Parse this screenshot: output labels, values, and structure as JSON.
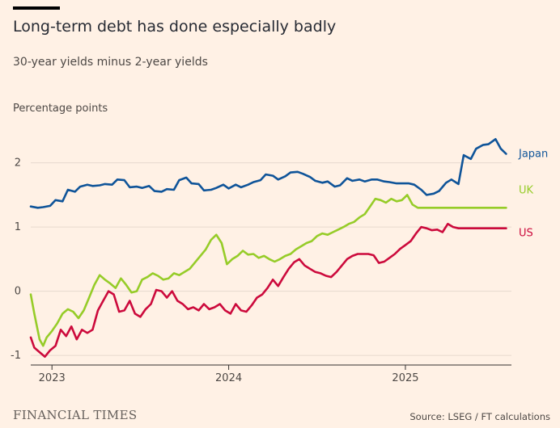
{
  "header": {
    "title": "Long-term debt has done especially badly",
    "subtitle": "30-year yields minus 2-year yields",
    "yaxis_label": "Percentage points"
  },
  "footer": {
    "brand": "FINANCIAL TIMES",
    "source": "Source: LSEG / FT calculations"
  },
  "colors": {
    "background": "#fff1e5",
    "japan": "#0f5499",
    "uk": "#96cc28",
    "us": "#cc0a3c",
    "grid": "#e6d9ce",
    "axis": "#33302e"
  },
  "chart_data": {
    "type": "line",
    "title": "Long-term debt has done especially badly",
    "subtitle": "30-year yields minus 2-year yields",
    "ylabel": "Percentage points",
    "ylim": [
      -1.15,
      2.65
    ],
    "yticks": [
      -1,
      0,
      1,
      2
    ],
    "xlim": [
      2022.88,
      2025.6
    ],
    "xticks": [
      {
        "label": "2023",
        "value": 2023.0
      },
      {
        "label": "2024",
        "value": 2024.0
      },
      {
        "label": "2025",
        "value": 2025.0
      }
    ],
    "grid": true,
    "legend": "inline labels at right end of each line",
    "series": [
      {
        "name": "Japan",
        "x": [
          2022.88,
          2022.92,
          2022.95,
          2022.99,
          2023.02,
          2023.06,
          2023.09,
          2023.13,
          2023.16,
          2023.2,
          2023.23,
          2023.27,
          2023.3,
          2023.34,
          2023.37,
          2023.41,
          2023.44,
          2023.48,
          2023.51,
          2023.55,
          2023.58,
          2023.62,
          2023.65,
          2023.69,
          2023.72,
          2023.76,
          2023.79,
          2023.83,
          2023.86,
          2023.9,
          2023.93,
          2023.97,
          2024.0,
          2024.04,
          2024.07,
          2024.11,
          2024.14,
          2024.18,
          2024.21,
          2024.25,
          2024.28,
          2024.32,
          2024.35,
          2024.39,
          2024.42,
          2024.46,
          2024.49,
          2024.53,
          2024.56,
          2024.6,
          2024.63,
          2024.67,
          2024.7,
          2024.74,
          2024.77,
          2024.81,
          2024.84,
          2024.88,
          2024.91,
          2024.95,
          2024.98,
          2025.02,
          2025.05,
          2025.09,
          2025.12,
          2025.16,
          2025.19,
          2025.23,
          2025.26,
          2025.3,
          2025.33,
          2025.37,
          2025.4,
          2025.44,
          2025.47,
          2025.51,
          2025.54,
          2025.57
        ],
        "values": [
          1.32,
          1.3,
          1.31,
          1.33,
          1.42,
          1.4,
          1.58,
          1.55,
          1.63,
          1.66,
          1.64,
          1.65,
          1.67,
          1.66,
          1.74,
          1.73,
          1.62,
          1.63,
          1.61,
          1.64,
          1.56,
          1.55,
          1.59,
          1.58,
          1.73,
          1.77,
          1.68,
          1.67,
          1.57,
          1.58,
          1.61,
          1.66,
          1.6,
          1.66,
          1.62,
          1.66,
          1.7,
          1.73,
          1.82,
          1.8,
          1.74,
          1.79,
          1.85,
          1.86,
          1.83,
          1.78,
          1.72,
          1.69,
          1.71,
          1.63,
          1.65,
          1.76,
          1.72,
          1.74,
          1.71,
          1.74,
          1.74,
          1.71,
          1.7,
          1.68,
          1.68,
          1.68,
          1.66,
          1.58,
          1.5,
          1.52,
          1.56,
          1.69,
          1.74,
          1.67,
          2.12,
          2.06,
          2.22,
          2.28,
          2.29,
          2.37,
          2.22,
          2.14
        ]
      },
      {
        "name": "UK",
        "x": [
          2022.88,
          2022.9,
          2022.93,
          2022.95,
          2022.97,
          2023.0,
          2023.03,
          2023.06,
          2023.09,
          2023.12,
          2023.15,
          2023.18,
          2023.21,
          2023.24,
          2023.27,
          2023.3,
          2023.33,
          2023.36,
          2023.39,
          2023.42,
          2023.45,
          2023.48,
          2023.51,
          2023.54,
          2023.57,
          2023.6,
          2023.63,
          2023.66,
          2023.69,
          2023.72,
          2023.75,
          2023.78,
          2023.81,
          2023.84,
          2023.87,
          2023.9,
          2023.93,
          2023.96,
          2023.99,
          2024.02,
          2024.05,
          2024.08,
          2024.11,
          2024.14,
          2024.17,
          2024.2,
          2024.23,
          2024.26,
          2024.29,
          2024.32,
          2024.35,
          2024.38,
          2024.41,
          2024.44,
          2024.47,
          2024.5,
          2024.53,
          2024.56,
          2024.59,
          2024.62,
          2024.65,
          2024.68,
          2024.71,
          2024.74,
          2024.77,
          2024.8,
          2024.83,
          2024.86,
          2024.89,
          2024.92,
          2024.95,
          2024.98,
          2025.01,
          2025.04,
          2025.07,
          2025.1,
          2025.13,
          2025.16,
          2025.19,
          2025.22,
          2025.25,
          2025.28,
          2025.31,
          2025.34,
          2025.37,
          2025.4,
          2025.43,
          2025.46,
          2025.49,
          2025.52,
          2025.55,
          2025.57
        ],
        "values": [
          -0.05,
          -0.35,
          -0.75,
          -0.85,
          -0.72,
          -0.62,
          -0.5,
          -0.35,
          -0.28,
          -0.32,
          -0.42,
          -0.3,
          -0.1,
          0.1,
          0.25,
          0.18,
          0.12,
          0.05,
          0.2,
          0.1,
          -0.02,
          0.0,
          0.18,
          0.22,
          0.28,
          0.24,
          0.18,
          0.2,
          0.28,
          0.25,
          0.3,
          0.35,
          0.45,
          0.55,
          0.65,
          0.8,
          0.88,
          0.75,
          0.42,
          0.5,
          0.55,
          0.63,
          0.57,
          0.58,
          0.52,
          0.55,
          0.5,
          0.46,
          0.5,
          0.55,
          0.58,
          0.65,
          0.7,
          0.75,
          0.78,
          0.86,
          0.9,
          0.88,
          0.92,
          0.96,
          1.0,
          1.05,
          1.08,
          1.15,
          1.2,
          1.32,
          1.44,
          1.42,
          1.38,
          1.44,
          1.4,
          1.42,
          1.5,
          1.35,
          1.3,
          1.3,
          1.3,
          1.3,
          1.3,
          1.3,
          1.3,
          1.3,
          1.3,
          1.3,
          1.3,
          1.3,
          1.3,
          1.3,
          1.3,
          1.3,
          1.3,
          1.3
        ]
      },
      {
        "name": "US",
        "x": [
          2022.88,
          2022.9,
          2022.93,
          2022.96,
          2022.99,
          2023.02,
          2023.05,
          2023.08,
          2023.11,
          2023.14,
          2023.17,
          2023.2,
          2023.23,
          2023.26,
          2023.29,
          2023.32,
          2023.35,
          2023.38,
          2023.41,
          2023.44,
          2023.47,
          2023.5,
          2023.53,
          2023.56,
          2023.59,
          2023.62,
          2023.65,
          2023.68,
          2023.71,
          2023.74,
          2023.77,
          2023.8,
          2023.83,
          2023.86,
          2023.89,
          2023.92,
          2023.95,
          2023.98,
          2024.01,
          2024.04,
          2024.07,
          2024.1,
          2024.13,
          2024.16,
          2024.19,
          2024.22,
          2024.25,
          2024.28,
          2024.31,
          2024.34,
          2024.37,
          2024.4,
          2024.43,
          2024.46,
          2024.49,
          2024.52,
          2024.55,
          2024.58,
          2024.61,
          2024.64,
          2024.67,
          2024.7,
          2024.73,
          2024.76,
          2024.79,
          2024.82,
          2024.85,
          2024.88,
          2024.91,
          2024.94,
          2024.97,
          2025.0,
          2025.03,
          2025.06,
          2025.09,
          2025.12,
          2025.15,
          2025.18,
          2025.21,
          2025.24,
          2025.27,
          2025.3,
          2025.33,
          2025.36,
          2025.39,
          2025.42,
          2025.45,
          2025.48,
          2025.51,
          2025.54,
          2025.57
        ],
        "values": [
          -0.72,
          -0.88,
          -0.95,
          -1.02,
          -0.92,
          -0.85,
          -0.6,
          -0.7,
          -0.55,
          -0.75,
          -0.6,
          -0.65,
          -0.6,
          -0.3,
          -0.15,
          0.0,
          -0.05,
          -0.32,
          -0.3,
          -0.15,
          -0.35,
          -0.4,
          -0.28,
          -0.2,
          0.02,
          0.0,
          -0.1,
          0.0,
          -0.15,
          -0.2,
          -0.28,
          -0.25,
          -0.3,
          -0.2,
          -0.28,
          -0.25,
          -0.2,
          -0.3,
          -0.35,
          -0.2,
          -0.3,
          -0.32,
          -0.22,
          -0.1,
          -0.05,
          0.05,
          0.18,
          0.08,
          0.22,
          0.35,
          0.45,
          0.5,
          0.4,
          0.35,
          0.3,
          0.28,
          0.24,
          0.22,
          0.3,
          0.4,
          0.5,
          0.55,
          0.58,
          0.58,
          0.58,
          0.56,
          0.44,
          0.46,
          0.52,
          0.58,
          0.66,
          0.72,
          0.78,
          0.9,
          1.0,
          0.98,
          0.95,
          0.96,
          0.92,
          1.05,
          1.0,
          0.98,
          0.98,
          0.98,
          0.98,
          0.98,
          0.98,
          0.98,
          0.98,
          0.98,
          0.98
        ]
      }
    ]
  }
}
